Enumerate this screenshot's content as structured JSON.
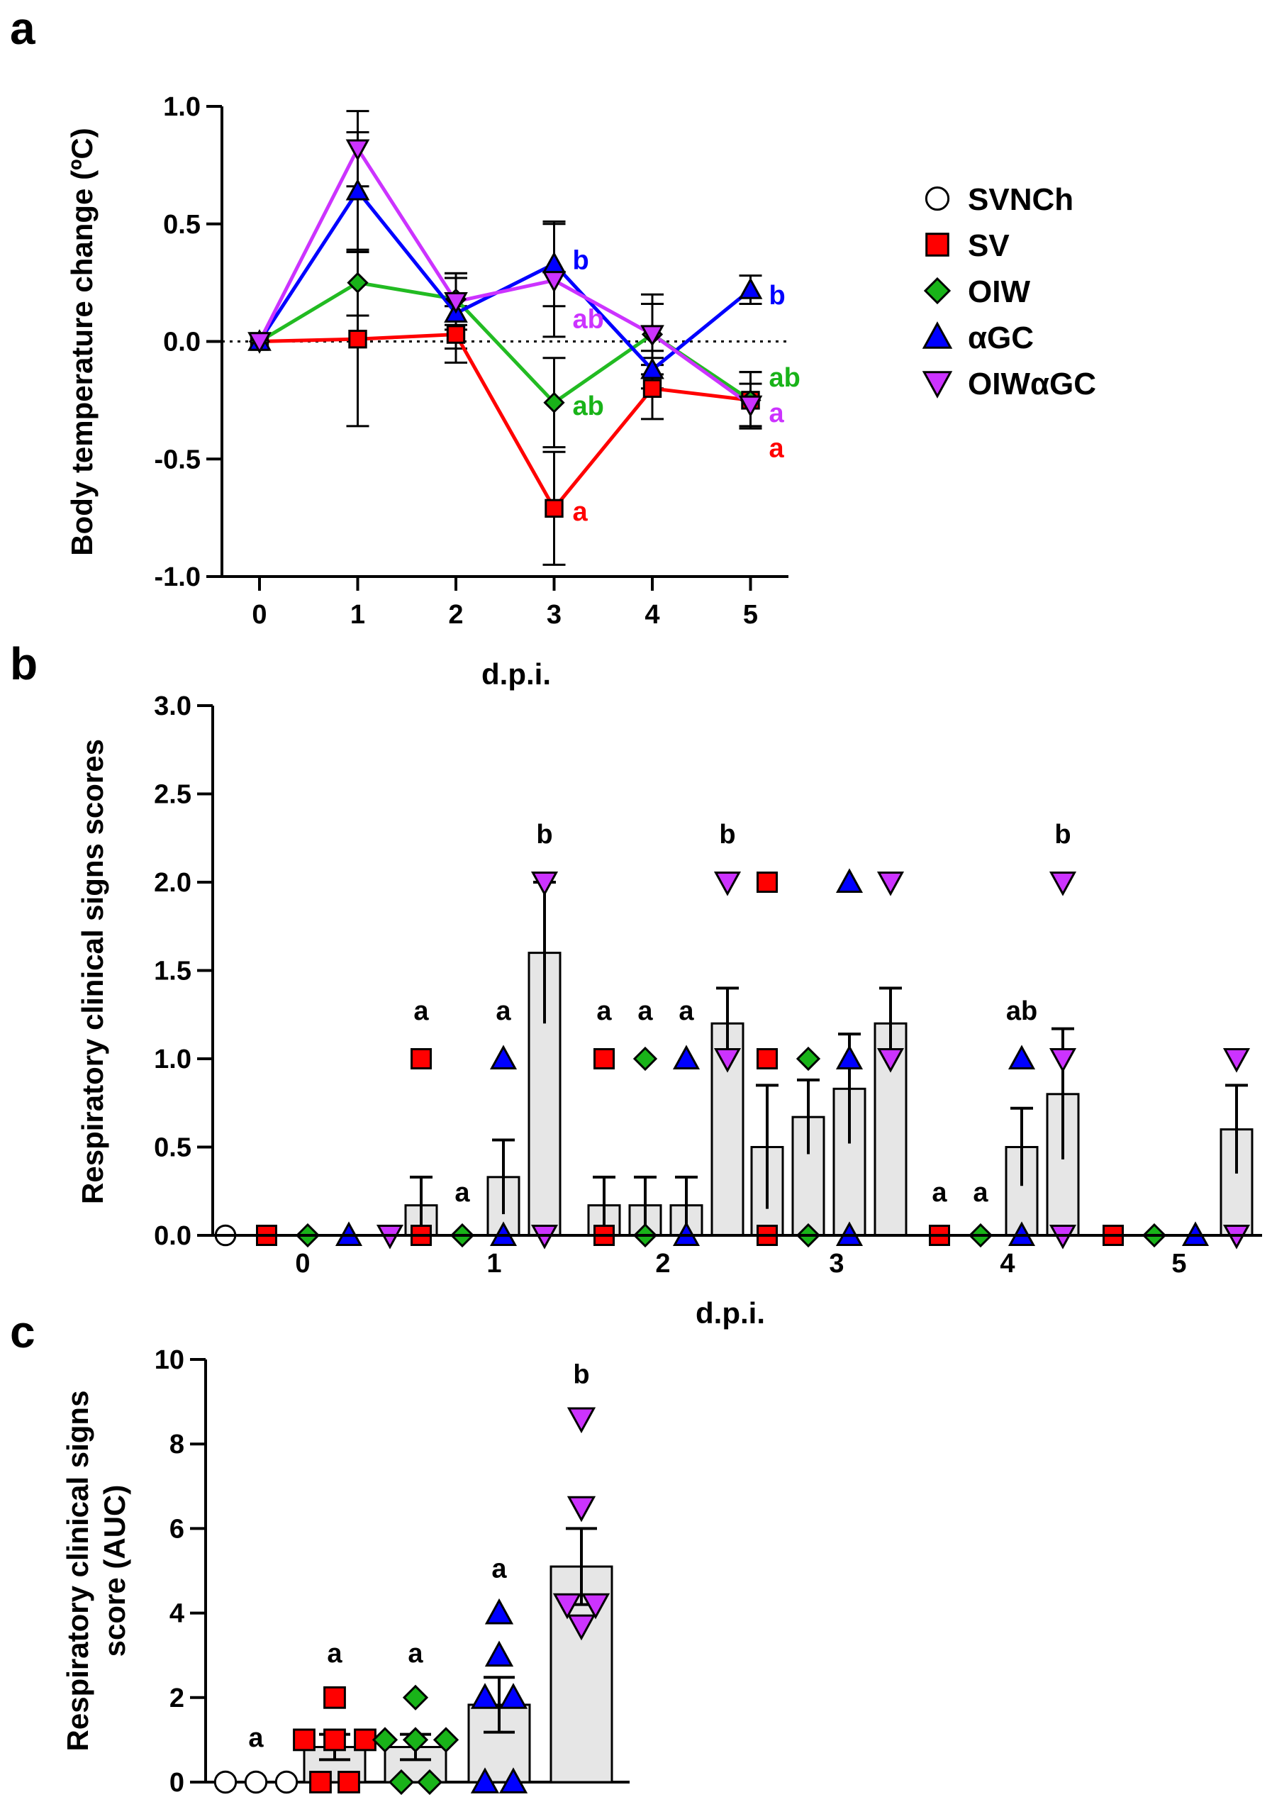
{
  "chart_data": [
    {
      "id": "a",
      "panel_label": "a",
      "type": "line",
      "xlabel": "d.p.i.",
      "ylabel": "Body temperature change (ºC)",
      "x": [
        0,
        1,
        2,
        3,
        4,
        5
      ],
      "x_tick_labels": [
        "0",
        "1",
        "2",
        "3",
        "4",
        "5"
      ],
      "ylim": [
        -1.0,
        1.0
      ],
      "y_ticks": [
        1.0,
        0.5,
        0.0,
        -0.5,
        -1.0
      ],
      "y_tick_labels": [
        "1.0",
        "0.5",
        "0.0",
        "-0.5",
        "-1.0"
      ],
      "zero_line": "dotted",
      "legend": {
        "position": "right",
        "entries": [
          {
            "label": "SVNCh",
            "marker": "circle",
            "color": "#ffffff"
          },
          {
            "label": "SV",
            "marker": "square",
            "color": "#ff0000"
          },
          {
            "label": "OIW",
            "marker": "diamond",
            "color": "#19b319"
          },
          {
            "label": "αGC",
            "marker": "triangle-up",
            "color": "#0000ff"
          },
          {
            "label": "OIWαGC",
            "marker": "triangle-down",
            "color": "#cc33ff"
          }
        ]
      },
      "series": [
        {
          "name": "SV",
          "color": "#ff0000",
          "line_color": "#ff0000",
          "marker": "square",
          "values": [
            0.0,
            0.01,
            0.03,
            -0.71,
            -0.2,
            -0.25
          ],
          "errors": [
            0.0,
            0.37,
            0.12,
            0.24,
            0.13,
            0.12
          ],
          "end_label": "a"
        },
        {
          "name": "OIW",
          "color": "#19b319",
          "line_color": "#22bb22",
          "marker": "diamond",
          "values": [
            0.0,
            0.25,
            0.18,
            -0.26,
            0.03,
            -0.25
          ],
          "errors": [
            0.0,
            0.14,
            0.11,
            0.19,
            0.13,
            0.12
          ],
          "end_label": "ab"
        },
        {
          "name": "αGC",
          "color": "#0000ff",
          "line_color": "#0000ff",
          "marker": "triangle-up",
          "values": [
            0.0,
            0.64,
            0.12,
            0.33,
            -0.12,
            0.22
          ],
          "errors": [
            0.0,
            0.25,
            0.15,
            0.18,
            0.08,
            0.06
          ],
          "end_label": "b"
        },
        {
          "name": "OIWαGC",
          "color": "#cc33ff",
          "line_color": "#cc33ff",
          "marker": "triangle-down",
          "values": [
            0.0,
            0.82,
            0.17,
            0.26,
            0.03,
            -0.27
          ],
          "errors": [
            0.0,
            0.16,
            0.12,
            0.24,
            0.17,
            0.09
          ],
          "end_label": "a"
        }
      ],
      "annotations": [
        {
          "text": "b",
          "x": 3,
          "y": 0.35,
          "color": "#0000ff"
        },
        {
          "text": "ab",
          "x": 3,
          "y": 0.1,
          "color": "#cc33ff"
        },
        {
          "text": "ab",
          "x": 3,
          "y": -0.27,
          "color": "#19b319"
        },
        {
          "text": "a",
          "x": 3,
          "y": -0.72,
          "color": "#ff0000"
        },
        {
          "text": "b",
          "x": 5,
          "y": 0.2,
          "color": "#0000ff"
        },
        {
          "text": "ab",
          "x": 5,
          "y": -0.15,
          "color": "#19b319"
        },
        {
          "text": "a",
          "x": 5,
          "y": -0.3,
          "color": "#cc33ff"
        },
        {
          "text": "a",
          "x": 5,
          "y": -0.45,
          "color": "#ff0000"
        }
      ]
    },
    {
      "id": "b",
      "panel_label": "b",
      "type": "bar",
      "xlabel": "d.p.i.",
      "ylabel": "Respiratory clinical signs scores",
      "ylim": [
        0,
        3.0
      ],
      "y_ticks": [
        0,
        0.5,
        1.0,
        1.5,
        2.0,
        2.5,
        3.0
      ],
      "y_tick_labels": [
        "0.0",
        "0.5",
        "1.0",
        "1.5",
        "2.0",
        "2.5",
        "3.0"
      ],
      "categories": [
        "0",
        "1",
        "2",
        "3",
        "4",
        "5"
      ],
      "group_order": [
        "SVNCh",
        "SV",
        "OIW",
        "αGC",
        "OIWαGC"
      ],
      "bar_color": "#e6e6e6",
      "days": [
        {
          "day": "0",
          "groups": [
            {
              "group": "SVNCh",
              "mean": 0,
              "sem": 0,
              "points": [
                0
              ],
              "label": ""
            },
            {
              "group": "SV",
              "mean": 0,
              "sem": 0,
              "points": [
                0
              ],
              "label": ""
            },
            {
              "group": "OIW",
              "mean": 0,
              "sem": 0,
              "points": [
                0
              ],
              "label": ""
            },
            {
              "group": "αGC",
              "mean": 0,
              "sem": 0,
              "points": [
                0
              ],
              "label": ""
            },
            {
              "group": "OIWαGC",
              "mean": 0,
              "sem": 0,
              "points": [
                0
              ],
              "label": ""
            }
          ]
        },
        {
          "day": "1",
          "groups": [
            {
              "group": "SV",
              "mean": 0.17,
              "sem": 0.16,
              "points": [
                1,
                0
              ],
              "label": "a"
            },
            {
              "group": "OIW",
              "mean": 0,
              "sem": 0,
              "points": [
                0
              ],
              "label": "a"
            },
            {
              "group": "αGC",
              "mean": 0.33,
              "sem": 0.21,
              "points": [
                1,
                0
              ],
              "label": "a"
            },
            {
              "group": "OIWαGC",
              "mean": 1.6,
              "sem": 0.4,
              "points": [
                2,
                0
              ],
              "label": "b"
            }
          ]
        },
        {
          "day": "2",
          "groups": [
            {
              "group": "SV",
              "mean": 0.17,
              "sem": 0.16,
              "points": [
                1,
                0
              ],
              "label": "a"
            },
            {
              "group": "OIW",
              "mean": 0.17,
              "sem": 0.16,
              "points": [
                1,
                0
              ],
              "label": "a"
            },
            {
              "group": "αGC",
              "mean": 0.17,
              "sem": 0.16,
              "points": [
                1,
                0
              ],
              "label": "a"
            },
            {
              "group": "OIWαGC",
              "mean": 1.2,
              "sem": 0.2,
              "points": [
                2,
                1
              ],
              "label": "b"
            }
          ]
        },
        {
          "day": "3",
          "groups": [
            {
              "group": "SV",
              "mean": 0.5,
              "sem": 0.35,
              "points": [
                2,
                1,
                0
              ],
              "label": ""
            },
            {
              "group": "OIW",
              "mean": 0.67,
              "sem": 0.21,
              "points": [
                1,
                0
              ],
              "label": ""
            },
            {
              "group": "αGC",
              "mean": 0.83,
              "sem": 0.31,
              "points": [
                2,
                1,
                0
              ],
              "label": ""
            },
            {
              "group": "OIWαGC",
              "mean": 1.2,
              "sem": 0.2,
              "points": [
                2,
                1
              ],
              "label": ""
            }
          ]
        },
        {
          "day": "4",
          "groups": [
            {
              "group": "SV",
              "mean": 0,
              "sem": 0,
              "points": [
                0
              ],
              "label": "a"
            },
            {
              "group": "OIW",
              "mean": 0,
              "sem": 0,
              "points": [
                0
              ],
              "label": "a"
            },
            {
              "group": "αGC",
              "mean": 0.5,
              "sem": 0.22,
              "points": [
                1,
                0
              ],
              "label": "ab"
            },
            {
              "group": "OIWαGC",
              "mean": 0.8,
              "sem": 0.37,
              "points": [
                2,
                1,
                0
              ],
              "label": "b"
            }
          ]
        },
        {
          "day": "5",
          "groups": [
            {
              "group": "SV",
              "mean": 0,
              "sem": 0,
              "points": [
                0
              ],
              "label": ""
            },
            {
              "group": "OIW",
              "mean": 0,
              "sem": 0,
              "points": [
                0
              ],
              "label": ""
            },
            {
              "group": "αGC",
              "mean": 0,
              "sem": 0,
              "points": [
                0
              ],
              "label": ""
            },
            {
              "group": "OIWαGC",
              "mean": 0.6,
              "sem": 0.25,
              "points": [
                1,
                0
              ],
              "label": ""
            }
          ]
        }
      ]
    },
    {
      "id": "c",
      "panel_label": "c",
      "type": "bar",
      "xlabel": "",
      "ylabel": "Respiratory clinical signs score (AUC)",
      "ylim": [
        0,
        10
      ],
      "y_ticks": [
        0,
        2,
        4,
        6,
        8,
        10
      ],
      "y_tick_labels": [
        "0",
        "2",
        "4",
        "6",
        "8",
        "10"
      ],
      "bar_color": "#e6e6e6",
      "groups": [
        {
          "group": "SVNCh",
          "mean": 0,
          "sem": 0,
          "points": [
            0,
            0,
            0
          ],
          "label": "a"
        },
        {
          "group": "SV",
          "mean": 0.83,
          "sem": 0.3,
          "points": [
            2,
            1,
            1,
            1,
            0,
            0
          ],
          "label": "a"
        },
        {
          "group": "OIW",
          "mean": 0.83,
          "sem": 0.3,
          "points": [
            2,
            1,
            1,
            1,
            0,
            0
          ],
          "label": "a"
        },
        {
          "group": "αGC",
          "mean": 1.83,
          "sem": 0.65,
          "points": [
            4,
            3,
            2,
            2,
            0,
            0
          ],
          "label": "a"
        },
        {
          "group": "OIWαGC",
          "mean": 5.1,
          "sem": 0.9,
          "points": [
            8.6,
            6.5,
            4.2,
            4.2,
            3.7
          ],
          "label": "b"
        }
      ]
    }
  ]
}
